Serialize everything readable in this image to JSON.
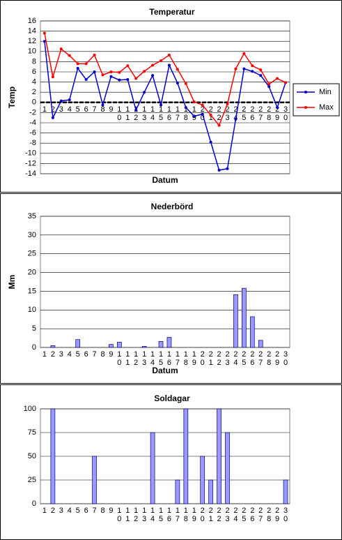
{
  "chart_data": [
    {
      "type": "line",
      "title": "Temperatur",
      "ylabel": "Temp",
      "xlabel": "Datum",
      "categories": [
        "1",
        "2",
        "3",
        "4",
        "5",
        "6",
        "7",
        "8",
        "9",
        "10",
        "11",
        "12",
        "13",
        "14",
        "15",
        "16",
        "17",
        "18",
        "19",
        "20",
        "21",
        "22",
        "23",
        "24",
        "25",
        "26",
        "27",
        "28",
        "29",
        "30"
      ],
      "series": [
        {
          "name": "Min",
          "color": "#0000cc",
          "values": [
            12,
            -3,
            0.3,
            0.5,
            6.7,
            4.5,
            6,
            -0.5,
            5.1,
            4.4,
            4.5,
            -1.5,
            2,
            5.3,
            -0.5,
            7.3,
            3.8,
            -1,
            -2.7,
            -2.3,
            -7.8,
            -13.3,
            -13,
            -3.3,
            6.6,
            6.1,
            5.3,
            3.1,
            -1,
            3.9
          ]
        },
        {
          "name": "Max",
          "color": "#ff0000",
          "values": [
            13.6,
            5,
            10.5,
            9.2,
            7.6,
            7.6,
            9.3,
            5.4,
            6,
            5.9,
            7.2,
            4.7,
            6.1,
            7.3,
            8.2,
            9.3,
            6.5,
            3.7,
            0.1,
            -0.5,
            -2.5,
            -4.5,
            -0.3,
            6.6,
            9.6,
            7.2,
            6.4,
            3.6,
            4.7,
            3.9
          ]
        }
      ],
      "ylim": [
        -14,
        16
      ],
      "yticks": [
        -14,
        -12,
        -10,
        -8,
        -6,
        -4,
        -2,
        0,
        2,
        4,
        6,
        8,
        10,
        12,
        14,
        16
      ],
      "grid": true,
      "legend": "right"
    },
    {
      "type": "bar",
      "title": "Nederbörd",
      "ylabel": "Mm",
      "xlabel": "Datum",
      "categories": [
        "1",
        "2",
        "3",
        "4",
        "5",
        "6",
        "7",
        "8",
        "9",
        "10",
        "11",
        "12",
        "13",
        "14",
        "15",
        "16",
        "17",
        "18",
        "19",
        "20",
        "21",
        "22",
        "23",
        "24",
        "25",
        "26",
        "27",
        "28",
        "29",
        "30"
      ],
      "values": [
        0,
        0.5,
        0,
        0,
        2.1,
        0,
        0,
        0,
        0.8,
        1.4,
        0,
        0,
        0.3,
        0,
        1.6,
        2.7,
        0,
        0,
        0,
        0,
        0,
        0,
        0,
        14.1,
        15.8,
        8.2,
        1.9,
        0,
        0,
        0
      ],
      "color": "#9999ff",
      "ylim": [
        0,
        35
      ],
      "yticks": [
        0,
        5,
        10,
        15,
        20,
        25,
        30,
        35
      ],
      "grid": true
    },
    {
      "type": "bar",
      "title": "Soldagar",
      "categories": [
        "1",
        "2",
        "3",
        "4",
        "5",
        "6",
        "7",
        "8",
        "9",
        "10",
        "11",
        "12",
        "13",
        "14",
        "15",
        "16",
        "17",
        "18",
        "19",
        "20",
        "21",
        "22",
        "23",
        "24",
        "25",
        "26",
        "27",
        "28",
        "29",
        "30"
      ],
      "values": [
        0,
        100,
        0,
        0,
        0,
        0,
        50,
        0,
        0,
        0,
        0,
        0,
        0,
        75,
        0,
        0,
        25,
        100,
        0,
        50,
        25,
        100,
        75,
        0,
        0,
        0,
        0,
        0,
        0,
        25
      ],
      "color": "#9999ff",
      "ylim": [
        0,
        100
      ],
      "yticks": [
        0,
        25,
        50,
        75,
        100
      ],
      "grid": true
    }
  ]
}
